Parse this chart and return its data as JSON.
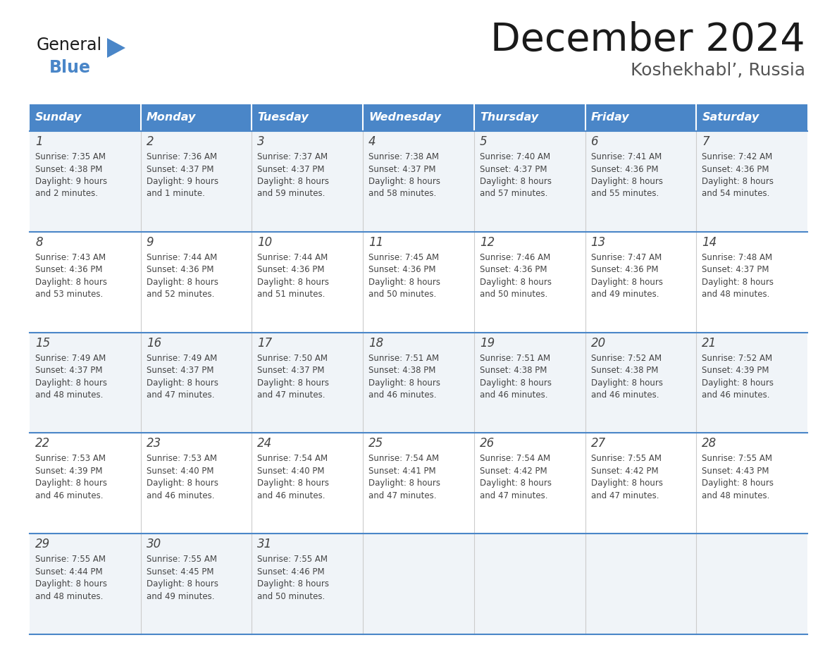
{
  "title": "December 2024",
  "subtitle": "Koshekhabl’, Russia",
  "days_of_week": [
    "Sunday",
    "Monday",
    "Tuesday",
    "Wednesday",
    "Thursday",
    "Friday",
    "Saturday"
  ],
  "header_bg": "#4a86c8",
  "header_text": "#ffffff",
  "cell_bg_odd": "#f0f4f8",
  "cell_bg_even": "#ffffff",
  "border_color": "#4a86c8",
  "day_num_color": "#444444",
  "cell_text_color": "#444444",
  "title_color": "#1a1a1a",
  "subtitle_color": "#555555",
  "logo_general_color": "#1a1a1a",
  "logo_blue_color": "#4a86c8",
  "calendar_data": [
    [
      {
        "day": "1",
        "sunrise": "7:35 AM",
        "sunset": "4:38 PM",
        "daylight_h": "9 hours",
        "daylight_m": "and 2 minutes."
      },
      {
        "day": "2",
        "sunrise": "7:36 AM",
        "sunset": "4:37 PM",
        "daylight_h": "9 hours",
        "daylight_m": "and 1 minute."
      },
      {
        "day": "3",
        "sunrise": "7:37 AM",
        "sunset": "4:37 PM",
        "daylight_h": "8 hours",
        "daylight_m": "and 59 minutes."
      },
      {
        "day": "4",
        "sunrise": "7:38 AM",
        "sunset": "4:37 PM",
        "daylight_h": "8 hours",
        "daylight_m": "and 58 minutes."
      },
      {
        "day": "5",
        "sunrise": "7:40 AM",
        "sunset": "4:37 PM",
        "daylight_h": "8 hours",
        "daylight_m": "and 57 minutes."
      },
      {
        "day": "6",
        "sunrise": "7:41 AM",
        "sunset": "4:36 PM",
        "daylight_h": "8 hours",
        "daylight_m": "and 55 minutes."
      },
      {
        "day": "7",
        "sunrise": "7:42 AM",
        "sunset": "4:36 PM",
        "daylight_h": "8 hours",
        "daylight_m": "and 54 minutes."
      }
    ],
    [
      {
        "day": "8",
        "sunrise": "7:43 AM",
        "sunset": "4:36 PM",
        "daylight_h": "8 hours",
        "daylight_m": "and 53 minutes."
      },
      {
        "day": "9",
        "sunrise": "7:44 AM",
        "sunset": "4:36 PM",
        "daylight_h": "8 hours",
        "daylight_m": "and 52 minutes."
      },
      {
        "day": "10",
        "sunrise": "7:44 AM",
        "sunset": "4:36 PM",
        "daylight_h": "8 hours",
        "daylight_m": "and 51 minutes."
      },
      {
        "day": "11",
        "sunrise": "7:45 AM",
        "sunset": "4:36 PM",
        "daylight_h": "8 hours",
        "daylight_m": "and 50 minutes."
      },
      {
        "day": "12",
        "sunrise": "7:46 AM",
        "sunset": "4:36 PM",
        "daylight_h": "8 hours",
        "daylight_m": "and 50 minutes."
      },
      {
        "day": "13",
        "sunrise": "7:47 AM",
        "sunset": "4:36 PM",
        "daylight_h": "8 hours",
        "daylight_m": "and 49 minutes."
      },
      {
        "day": "14",
        "sunrise": "7:48 AM",
        "sunset": "4:37 PM",
        "daylight_h": "8 hours",
        "daylight_m": "and 48 minutes."
      }
    ],
    [
      {
        "day": "15",
        "sunrise": "7:49 AM",
        "sunset": "4:37 PM",
        "daylight_h": "8 hours",
        "daylight_m": "and 48 minutes."
      },
      {
        "day": "16",
        "sunrise": "7:49 AM",
        "sunset": "4:37 PM",
        "daylight_h": "8 hours",
        "daylight_m": "and 47 minutes."
      },
      {
        "day": "17",
        "sunrise": "7:50 AM",
        "sunset": "4:37 PM",
        "daylight_h": "8 hours",
        "daylight_m": "and 47 minutes."
      },
      {
        "day": "18",
        "sunrise": "7:51 AM",
        "sunset": "4:38 PM",
        "daylight_h": "8 hours",
        "daylight_m": "and 46 minutes."
      },
      {
        "day": "19",
        "sunrise": "7:51 AM",
        "sunset": "4:38 PM",
        "daylight_h": "8 hours",
        "daylight_m": "and 46 minutes."
      },
      {
        "day": "20",
        "sunrise": "7:52 AM",
        "sunset": "4:38 PM",
        "daylight_h": "8 hours",
        "daylight_m": "and 46 minutes."
      },
      {
        "day": "21",
        "sunrise": "7:52 AM",
        "sunset": "4:39 PM",
        "daylight_h": "8 hours",
        "daylight_m": "and 46 minutes."
      }
    ],
    [
      {
        "day": "22",
        "sunrise": "7:53 AM",
        "sunset": "4:39 PM",
        "daylight_h": "8 hours",
        "daylight_m": "and 46 minutes."
      },
      {
        "day": "23",
        "sunrise": "7:53 AM",
        "sunset": "4:40 PM",
        "daylight_h": "8 hours",
        "daylight_m": "and 46 minutes."
      },
      {
        "day": "24",
        "sunrise": "7:54 AM",
        "sunset": "4:40 PM",
        "daylight_h": "8 hours",
        "daylight_m": "and 46 minutes."
      },
      {
        "day": "25",
        "sunrise": "7:54 AM",
        "sunset": "4:41 PM",
        "daylight_h": "8 hours",
        "daylight_m": "and 47 minutes."
      },
      {
        "day": "26",
        "sunrise": "7:54 AM",
        "sunset": "4:42 PM",
        "daylight_h": "8 hours",
        "daylight_m": "and 47 minutes."
      },
      {
        "day": "27",
        "sunrise": "7:55 AM",
        "sunset": "4:42 PM",
        "daylight_h": "8 hours",
        "daylight_m": "and 47 minutes."
      },
      {
        "day": "28",
        "sunrise": "7:55 AM",
        "sunset": "4:43 PM",
        "daylight_h": "8 hours",
        "daylight_m": "and 48 minutes."
      }
    ],
    [
      {
        "day": "29",
        "sunrise": "7:55 AM",
        "sunset": "4:44 PM",
        "daylight_h": "8 hours",
        "daylight_m": "and 48 minutes."
      },
      {
        "day": "30",
        "sunrise": "7:55 AM",
        "sunset": "4:45 PM",
        "daylight_h": "8 hours",
        "daylight_m": "and 49 minutes."
      },
      {
        "day": "31",
        "sunrise": "7:55 AM",
        "sunset": "4:46 PM",
        "daylight_h": "8 hours",
        "daylight_m": "and 50 minutes."
      },
      null,
      null,
      null,
      null
    ]
  ]
}
